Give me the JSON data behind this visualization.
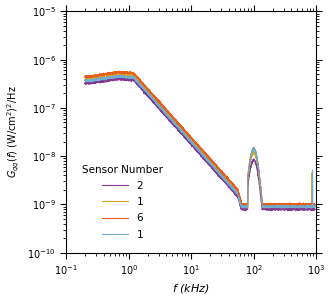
{
  "title": "",
  "xlabel": "$f$ (kHz)",
  "ylabel": "$G_{qq}(f)$ (W/cm$^2$)$^2$/Hz",
  "xlim": [
    0.1,
    1000
  ],
  "ylim": [
    1e-10,
    1e-05
  ],
  "legend_title": "Sensor Number",
  "legend_entries": [
    "1",
    "6",
    "1",
    "2"
  ],
  "line_colors": [
    "#6baed6",
    "#e6550d",
    "#d4a017",
    "#7B2D8B"
  ],
  "background_color": "#ffffff",
  "grid_color": "#cccccc",
  "scales": [
    4.5e-07,
    5.5e-07,
    4.8e-07,
    4e-07
  ],
  "peak_amps": [
    1.15,
    0.95,
    0.9,
    0.75
  ],
  "noise_floors": [
    9e-10,
    1e-09,
    9e-10,
    8e-10
  ]
}
